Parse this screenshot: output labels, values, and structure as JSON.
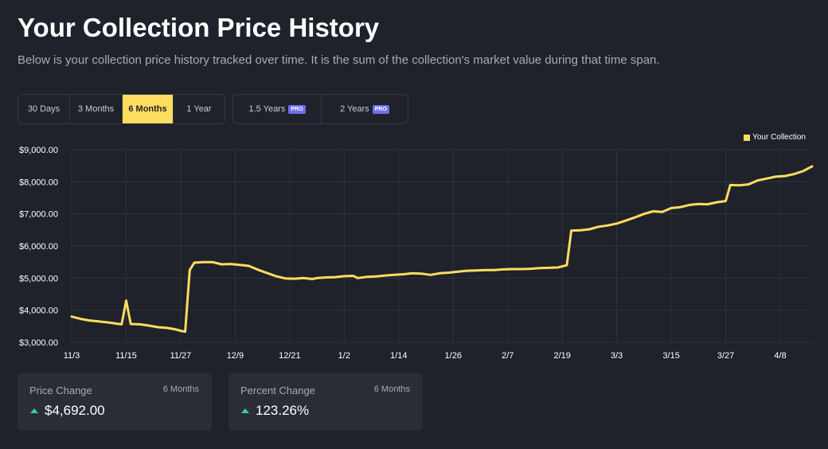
{
  "header": {
    "title": "Your Collection Price History",
    "subtitle": "Below is your collection price history tracked over time. It is the sum of the collection's market value during that time span."
  },
  "ranges": {
    "basic": [
      {
        "label": "30 Days",
        "active": false
      },
      {
        "label": "3 Months",
        "active": false
      },
      {
        "label": "6 Months",
        "active": true
      },
      {
        "label": "1 Year",
        "active": false
      }
    ],
    "pro": [
      {
        "label": "1.5 Years",
        "badge": "PRO"
      },
      {
        "label": "2 Years",
        "badge": "PRO"
      }
    ]
  },
  "legend": {
    "label": "Your Collection",
    "color": "#ffdd5f"
  },
  "chart_data": {
    "type": "line",
    "series": [
      {
        "name": "Your Collection",
        "color": "#ffdd5f",
        "points": [
          [
            "11/3",
            3800
          ],
          [
            "11/5",
            3730
          ],
          [
            "11/7",
            3680
          ],
          [
            "11/9",
            3650
          ],
          [
            "11/11",
            3620
          ],
          [
            "11/13",
            3580
          ],
          [
            "11/14",
            3560
          ],
          [
            "11/15",
            4300
          ],
          [
            "11/16",
            3570
          ],
          [
            "11/18",
            3560
          ],
          [
            "11/20",
            3520
          ],
          [
            "11/22",
            3470
          ],
          [
            "11/24",
            3450
          ],
          [
            "11/26",
            3400
          ],
          [
            "11/27",
            3360
          ],
          [
            "11/28",
            3330
          ],
          [
            "11/29",
            5250
          ],
          [
            "11/30",
            5480
          ],
          [
            "12/2",
            5500
          ],
          [
            "12/4",
            5500
          ],
          [
            "12/6",
            5430
          ],
          [
            "12/8",
            5440
          ],
          [
            "12/10",
            5410
          ],
          [
            "12/12",
            5380
          ],
          [
            "12/14",
            5260
          ],
          [
            "12/16",
            5160
          ],
          [
            "12/18",
            5060
          ],
          [
            "12/20",
            4990
          ],
          [
            "12/22",
            4980
          ],
          [
            "12/24",
            5000
          ],
          [
            "12/26",
            4970
          ],
          [
            "12/27",
            5000
          ],
          [
            "12/29",
            5020
          ],
          [
            "12/31",
            5030
          ],
          [
            "1/2",
            5060
          ],
          [
            "1/4",
            5070
          ],
          [
            "1/5",
            5000
          ],
          [
            "1/7",
            5040
          ],
          [
            "1/9",
            5050
          ],
          [
            "1/11",
            5080
          ],
          [
            "1/13",
            5100
          ],
          [
            "1/15",
            5120
          ],
          [
            "1/17",
            5150
          ],
          [
            "1/19",
            5140
          ],
          [
            "1/21",
            5100
          ],
          [
            "1/23",
            5150
          ],
          [
            "1/25",
            5170
          ],
          [
            "1/27",
            5200
          ],
          [
            "1/29",
            5230
          ],
          [
            "1/31",
            5240
          ],
          [
            "2/2",
            5250
          ],
          [
            "2/4",
            5250
          ],
          [
            "2/6",
            5270
          ],
          [
            "2/8",
            5280
          ],
          [
            "2/10",
            5280
          ],
          [
            "2/12",
            5290
          ],
          [
            "2/14",
            5310
          ],
          [
            "2/16",
            5320
          ],
          [
            "2/18",
            5330
          ],
          [
            "2/20",
            5400
          ],
          [
            "2/21",
            6480
          ],
          [
            "2/23",
            6490
          ],
          [
            "2/25",
            6520
          ],
          [
            "2/27",
            6600
          ],
          [
            "3/1",
            6640
          ],
          [
            "3/3",
            6700
          ],
          [
            "3/5",
            6790
          ],
          [
            "3/7",
            6890
          ],
          [
            "3/9",
            7000
          ],
          [
            "3/11",
            7080
          ],
          [
            "3/13",
            7060
          ],
          [
            "3/15",
            7180
          ],
          [
            "3/17",
            7210
          ],
          [
            "3/19",
            7280
          ],
          [
            "3/21",
            7310
          ],
          [
            "3/23",
            7300
          ],
          [
            "3/25",
            7360
          ],
          [
            "3/27",
            7400
          ],
          [
            "3/28",
            7900
          ],
          [
            "3/30",
            7890
          ],
          [
            "4/1",
            7920
          ],
          [
            "4/3",
            8040
          ],
          [
            "4/5",
            8100
          ],
          [
            "4/7",
            8160
          ],
          [
            "4/9",
            8180
          ],
          [
            "4/11",
            8240
          ],
          [
            "4/13",
            8330
          ],
          [
            "4/15",
            8480
          ]
        ]
      }
    ],
    "x_ticks": [
      "11/3",
      "11/15",
      "11/27",
      "12/9",
      "12/21",
      "1/2",
      "1/14",
      "1/26",
      "2/7",
      "2/19",
      "3/3",
      "3/15",
      "3/27",
      "4/8"
    ],
    "y_ticks": [
      "$3,000.00",
      "$4,000.00",
      "$5,000.00",
      "$6,000.00",
      "$7,000.00",
      "$8,000.00",
      "$9,000.00"
    ],
    "ylim": [
      3000,
      9000
    ],
    "grid": true,
    "legend_position": "top-right"
  },
  "stats": [
    {
      "label": "Price Change",
      "period": "6 Months",
      "value": "$4,692.00"
    },
    {
      "label": "Percent Change",
      "period": "6 Months",
      "value": "123.26%"
    }
  ]
}
